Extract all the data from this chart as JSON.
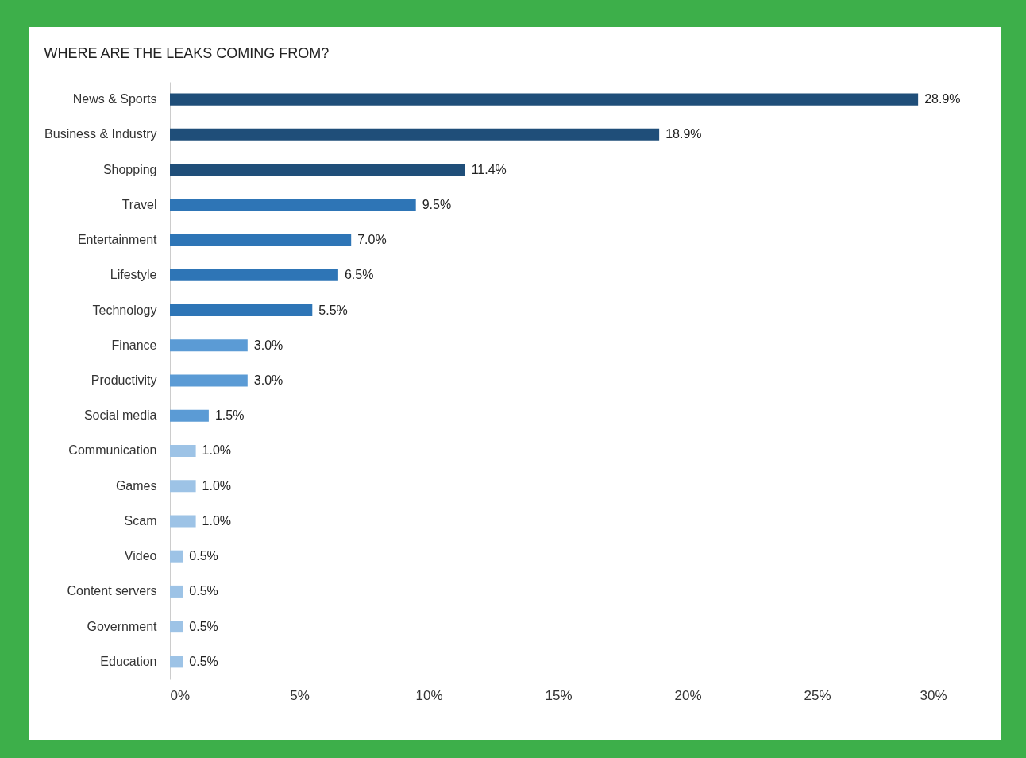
{
  "chart_data": {
    "type": "bar",
    "orientation": "horizontal",
    "title": "WHERE ARE THE LEAKS COMING FROM?",
    "categories": [
      "News & Sports",
      "Business & Industry",
      "Shopping",
      "Travel",
      "Entertainment",
      "Lifestyle",
      "Technology",
      "Finance",
      "Productivity",
      "Social media",
      "Communication",
      "Games",
      "Scam",
      "Video",
      "Content servers",
      "Government",
      "Education"
    ],
    "values": [
      28.9,
      18.9,
      11.4,
      9.5,
      7.0,
      6.5,
      5.5,
      3.0,
      3.0,
      1.5,
      1.0,
      1.0,
      1.0,
      0.5,
      0.5,
      0.5,
      0.5
    ],
    "value_labels": [
      "28.9%",
      "18.9%",
      "11.4%",
      "9.5%",
      "7.0%",
      "6.5%",
      "5.5%",
      "3.0%",
      "3.0%",
      "1.5%",
      "1.0%",
      "1.0%",
      "1.0%",
      "0.5%",
      "0.5%",
      "0.5%",
      "0.5%"
    ],
    "colors": [
      "#1f4e79",
      "#1f4e79",
      "#1f4e79",
      "#2e75b6",
      "#2e75b6",
      "#2e75b6",
      "#2e75b6",
      "#5b9bd5",
      "#5b9bd5",
      "#5b9bd5",
      "#9dc3e6",
      "#9dc3e6",
      "#9dc3e6",
      "#9dc3e6",
      "#9dc3e6",
      "#9dc3e6",
      "#9dc3e6"
    ],
    "xlim": [
      0,
      30
    ],
    "xticks": [
      {
        "value": 0,
        "label": "0%"
      },
      {
        "value": 5,
        "label": "5%"
      },
      {
        "value": 10,
        "label": "10%"
      },
      {
        "value": 15,
        "label": "15%"
      },
      {
        "value": 20,
        "label": "20%"
      },
      {
        "value": 25,
        "label": "25%"
      },
      {
        "value": 30,
        "label": "30%"
      }
    ],
    "grid": false,
    "legend": false
  }
}
